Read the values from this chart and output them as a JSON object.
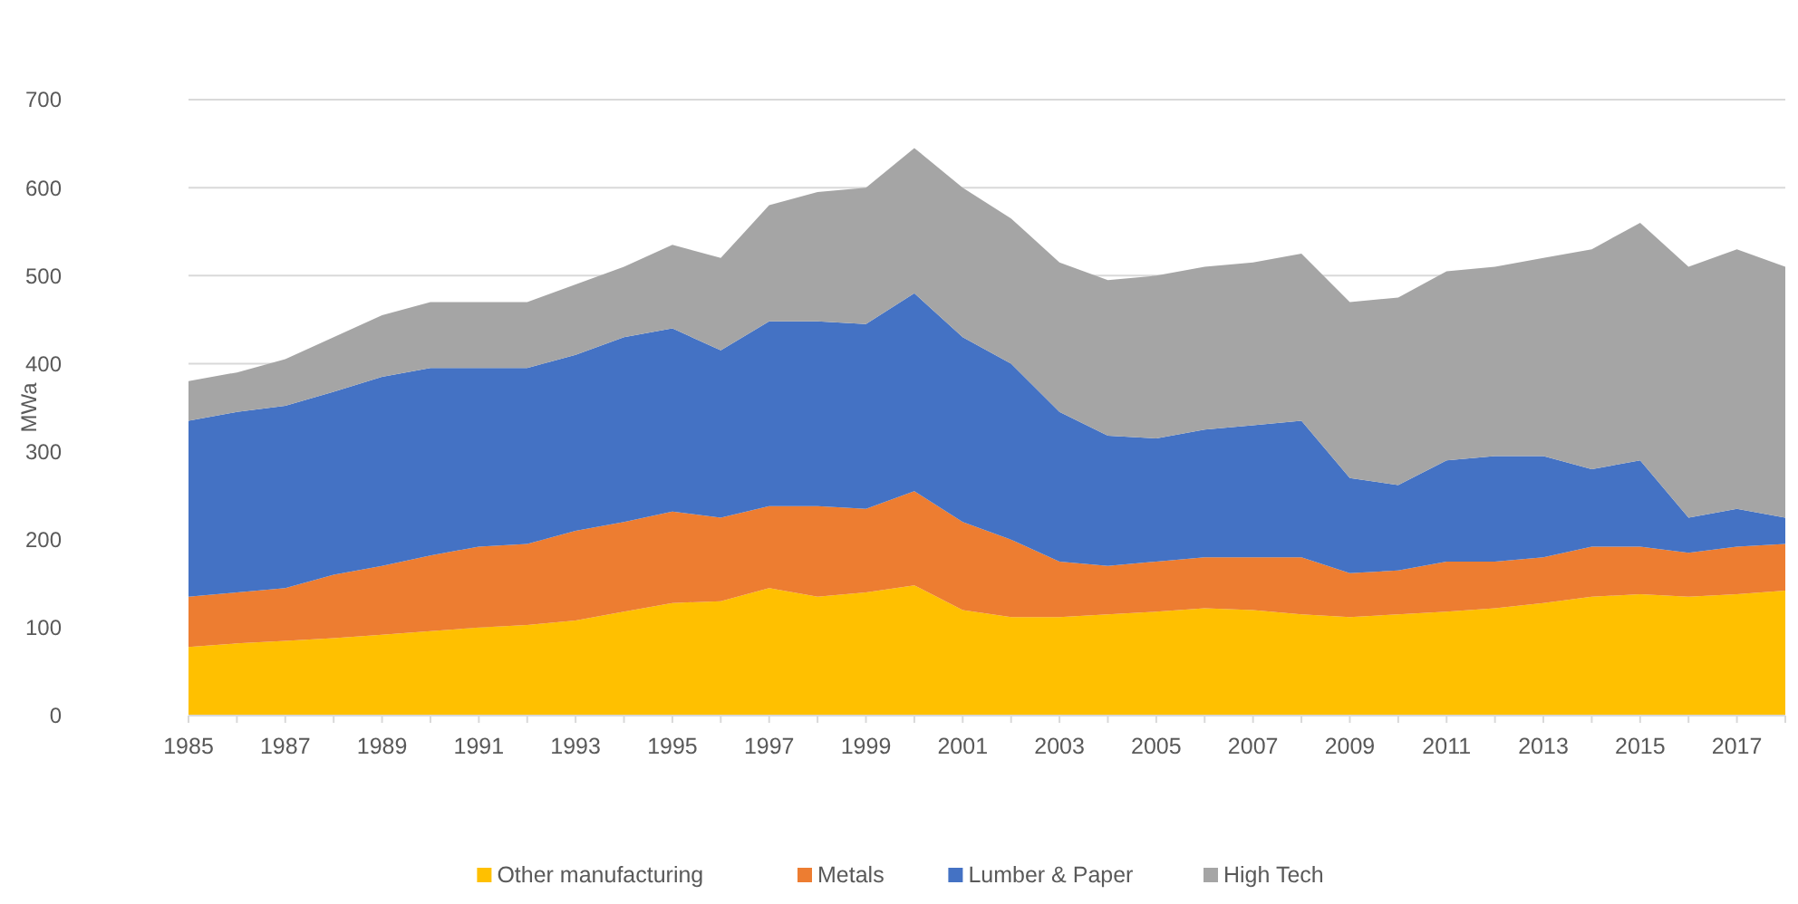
{
  "chart_data": {
    "type": "area",
    "stacked": true,
    "ylabel": "MWa",
    "categories": [
      "1985",
      null,
      "1987",
      null,
      "1989",
      null,
      "1991",
      null,
      "1993",
      null,
      "1995",
      null,
      "1997",
      null,
      "1999",
      null,
      "2001",
      null,
      "2003",
      null,
      "2005",
      null,
      "2007",
      null,
      "2009",
      null,
      "2011",
      null,
      "2013",
      null,
      "2015",
      null,
      "2017",
      null
    ],
    "series": [
      {
        "name": "Other manufacturing",
        "color": "#ffc000",
        "values": [
          78,
          82,
          85,
          88,
          92,
          96,
          100,
          103,
          108,
          118,
          128,
          130,
          145,
          135,
          140,
          148,
          120,
          112,
          112,
          115,
          118,
          122,
          120,
          115,
          112,
          115,
          118,
          122,
          128,
          135,
          138,
          135,
          138,
          142
        ]
      },
      {
        "name": "Metals",
        "color": "#ed7d31",
        "values": [
          57,
          58,
          60,
          72,
          78,
          86,
          92,
          92,
          102,
          102,
          104,
          95,
          93,
          103,
          95,
          107,
          100,
          88,
          63,
          55,
          57,
          58,
          60,
          65,
          50,
          50,
          57,
          53,
          52,
          57,
          54,
          50,
          54,
          53
        ]
      },
      {
        "name": "Lumber & Paper",
        "color": "#4472c4",
        "values": [
          200,
          205,
          207,
          208,
          215,
          213,
          203,
          200,
          200,
          210,
          208,
          190,
          210,
          210,
          210,
          225,
          210,
          200,
          170,
          148,
          140,
          145,
          150,
          155,
          108,
          97,
          115,
          120,
          115,
          88,
          98,
          40,
          43,
          30
        ]
      },
      {
        "name": "High Tech",
        "color": "#a5a5a5",
        "values": [
          45,
          45,
          53,
          62,
          70,
          75,
          75,
          75,
          80,
          80,
          95,
          105,
          132,
          147,
          155,
          165,
          170,
          165,
          170,
          177,
          185,
          185,
          185,
          190,
          200,
          213,
          215,
          215,
          225,
          250,
          270,
          285,
          295,
          285
        ]
      }
    ],
    "ylim": [
      0,
      700
    ],
    "yticks": [
      0,
      100,
      200,
      300,
      400,
      500,
      600,
      700
    ],
    "grid": "y",
    "legend": "bottom"
  }
}
